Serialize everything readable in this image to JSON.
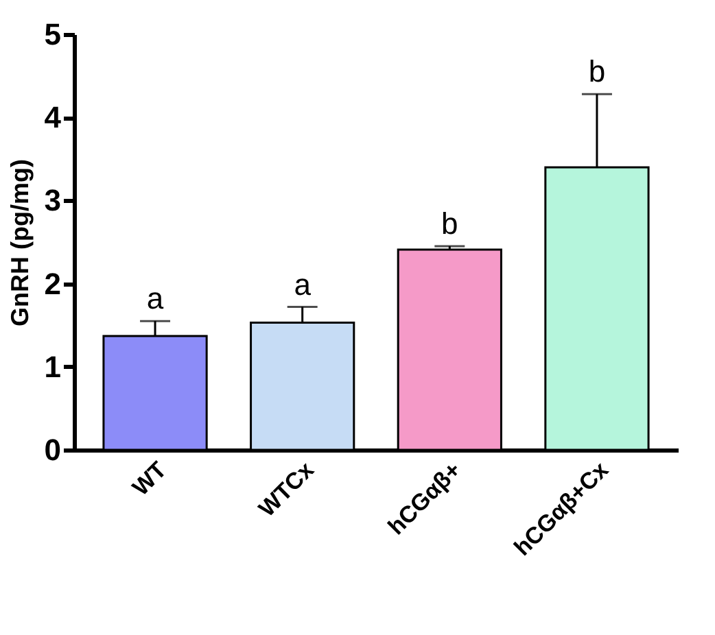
{
  "chart_data": {
    "type": "bar",
    "ylabel": "GnRH (pg/mg)",
    "categories": [
      "WT",
      "WTCx",
      "hCGαβ+",
      "hCGαβ+Cx"
    ],
    "values": [
      1.37,
      1.53,
      2.41,
      3.4
    ],
    "colors": [
      "#8c8cf8",
      "#c6dcf5",
      "#f59ac8",
      "#b5f5dc"
    ],
    "errors": [
      [
        1.37,
        1.55
      ],
      [
        1.53,
        1.72
      ],
      [
        2.41,
        2.45
      ],
      [
        3.4,
        4.28
      ]
    ],
    "ylim": [
      0,
      5
    ],
    "yticks": [
      0,
      1,
      2,
      3,
      4,
      5
    ],
    "grid": false,
    "annotations": [
      {
        "text": "a",
        "x": "WT",
        "y": 1.55
      },
      {
        "text": "a",
        "x": "WTCx",
        "y": 1.72
      },
      {
        "text": "b",
        "x": "hCGαβ+",
        "y": 2.45
      },
      {
        "text": "b",
        "x": "hCGαβ+Cx",
        "y": 4.28
      }
    ]
  }
}
